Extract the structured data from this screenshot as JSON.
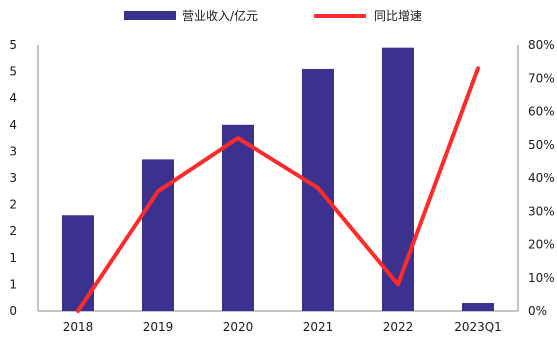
{
  "chart_data": {
    "type": "bar",
    "categories": [
      "2018",
      "2019",
      "2020",
      "2021",
      "2022",
      "2023Q1"
    ],
    "series": [
      {
        "name": "营业收入/亿元",
        "type": "bar",
        "axis": "left",
        "color": "#3b3290",
        "values": [
          1.8,
          2.85,
          3.5,
          4.55,
          4.95,
          0.15
        ]
      },
      {
        "name": "同比增速",
        "type": "line",
        "axis": "right",
        "color": "#ff2a2a",
        "values": [
          0.0,
          0.36,
          0.52,
          0.37,
          0.08,
          0.73
        ]
      }
    ],
    "y_left": {
      "ylim": [
        0,
        5
      ],
      "tick_labels": [
        "0",
        "1",
        "1",
        "2",
        "2",
        "3",
        "3",
        "4",
        "4",
        "5",
        "5"
      ]
    },
    "y_right": {
      "ylim": [
        0,
        0.8
      ],
      "tick_labels": [
        "0%",
        "10%",
        "20%",
        "30%",
        "40%",
        "50%",
        "60%",
        "70%",
        "80%"
      ]
    },
    "legend_position": "top",
    "grid": false
  }
}
